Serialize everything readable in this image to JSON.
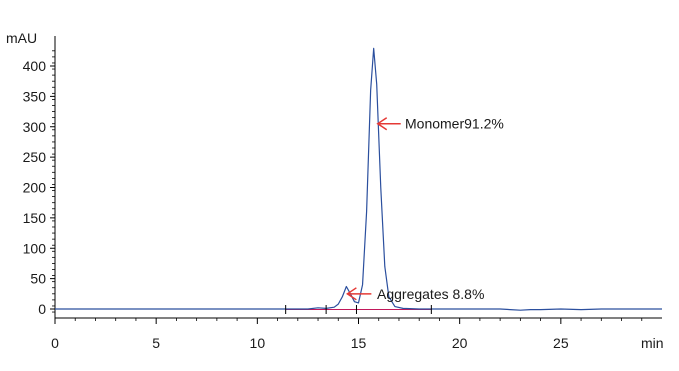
{
  "chart_data": {
    "type": "line",
    "title": "",
    "xlabel": "min",
    "ylabel": "mAU",
    "xlim": [
      0,
      30
    ],
    "ylim": [
      -10,
      440
    ],
    "xticks": [
      0,
      5,
      10,
      15,
      20,
      25
    ],
    "yticks": [
      0,
      50,
      100,
      150,
      200,
      250,
      300,
      350,
      400
    ],
    "grid": false,
    "colors": {
      "trace": "#2b4f9e",
      "baseline": "#c2185b",
      "arrow": "#e53935",
      "axis": "#000000"
    },
    "series": [
      {
        "x": [
          0,
          5,
          10,
          11.4,
          12.5,
          13.0,
          13.4,
          13.8,
          14.0,
          14.2,
          14.4,
          14.6,
          14.8,
          15.0,
          15.2,
          15.4,
          15.6,
          15.75,
          15.9,
          16.1,
          16.3,
          16.5,
          16.8,
          17.2,
          18,
          19,
          20,
          21,
          22,
          22.5,
          23,
          23.5,
          24,
          25,
          26,
          27,
          28,
          29,
          30
        ],
        "y": [
          0,
          0,
          0,
          0,
          0,
          2,
          1,
          3,
          8,
          20,
          37,
          25,
          12,
          10,
          40,
          160,
          360,
          429,
          370,
          200,
          70,
          20,
          4,
          1,
          0,
          0,
          0,
          0,
          0,
          -1,
          -2,
          -1,
          -1,
          0,
          -1,
          0,
          0,
          0,
          0
        ]
      }
    ],
    "peak_markers_x": [
      11.4,
      13.4,
      14.9,
      18.6
    ],
    "annotations": [
      {
        "text": "Monomer91.2%",
        "x": 15.8,
        "y": 305
      },
      {
        "text": "Aggregates 8.8%",
        "x": 14.4,
        "y": 25
      }
    ]
  }
}
